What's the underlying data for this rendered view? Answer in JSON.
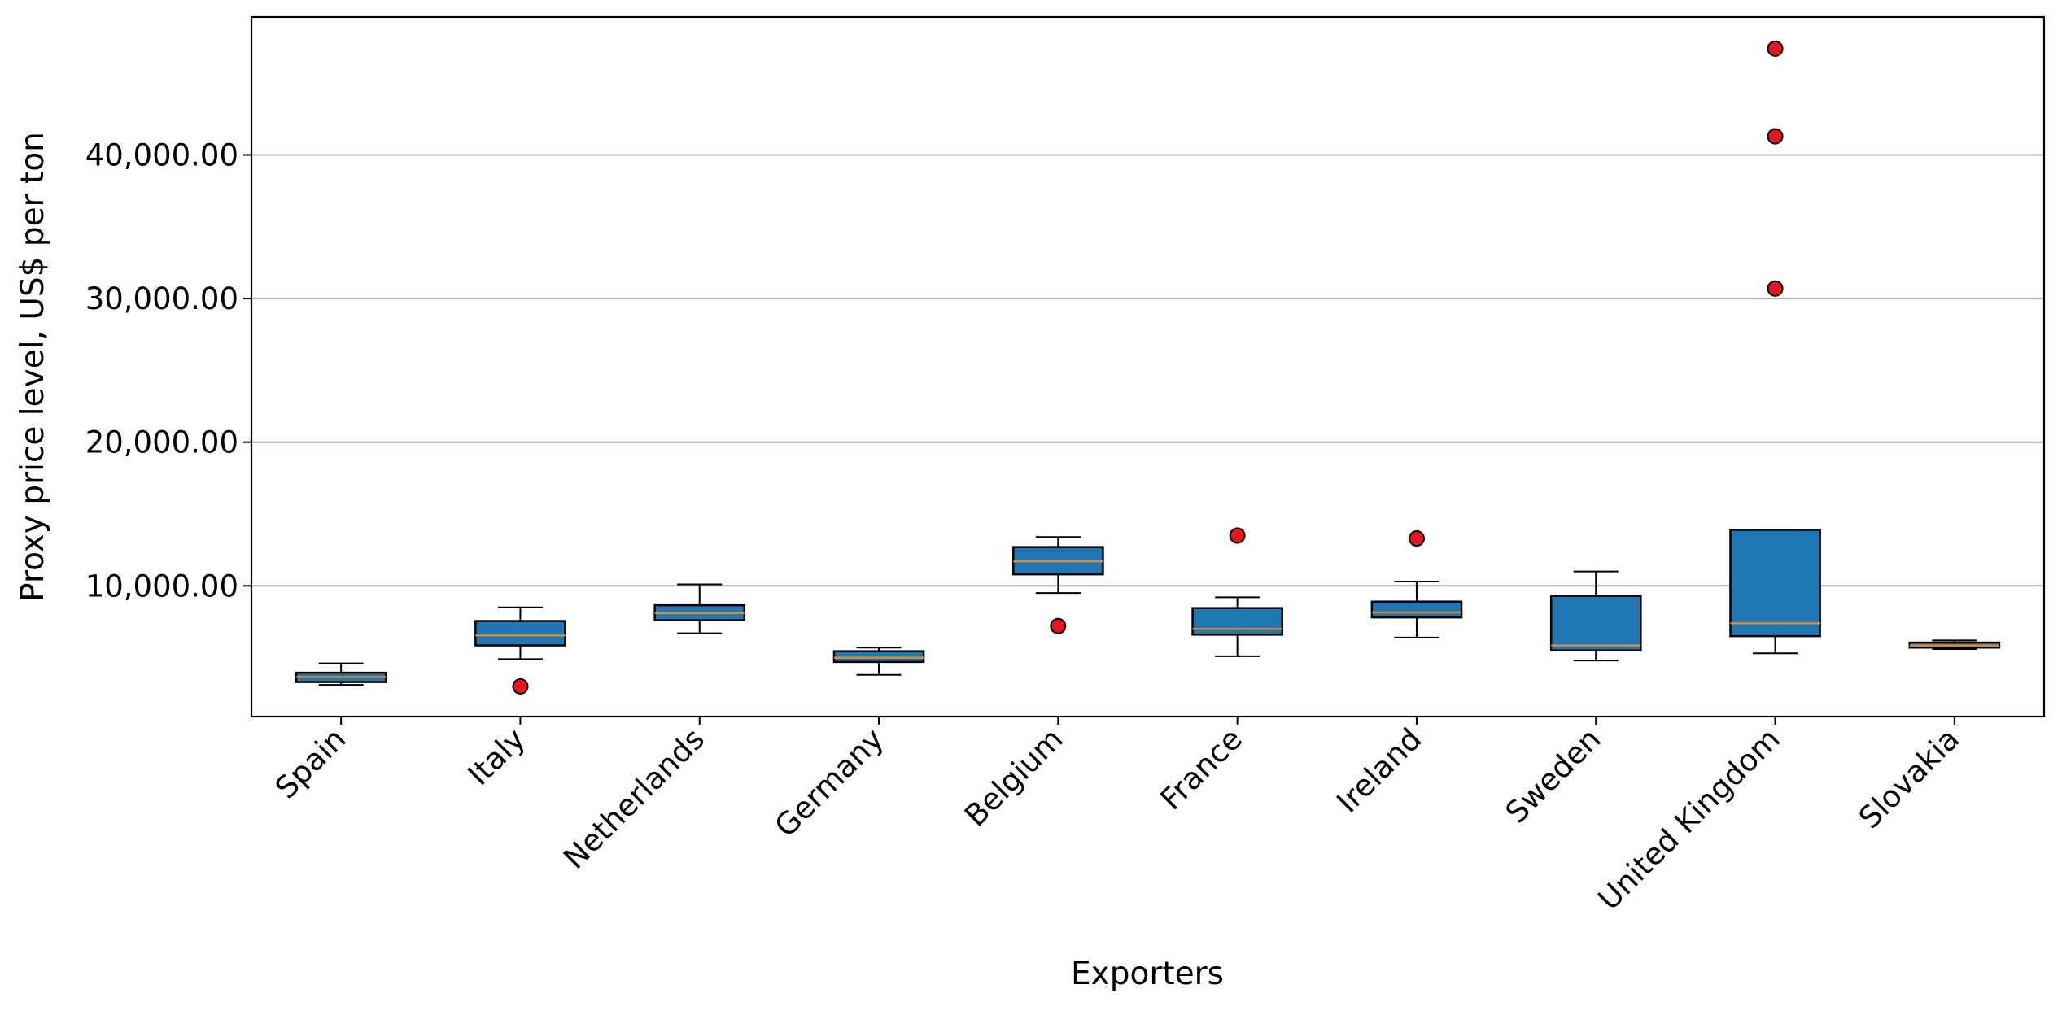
{
  "chart_data": {
    "type": "boxplot",
    "title": "",
    "xlabel": "Exporters",
    "ylabel": "Proxy price level, US$ per ton",
    "ylim": [
      900,
      49600
    ],
    "yticks": [
      10000,
      20000,
      30000,
      40000
    ],
    "ytick_labels": [
      "10,000.00",
      "20,000.00",
      "30,000.00",
      "40,000.00"
    ],
    "grid": "y",
    "legend": "none",
    "colors": {
      "box": "#1f77b4",
      "median": "#e08a2c",
      "outlier": "#e8141e",
      "grid": "#b0b0b0"
    },
    "categories": [
      "Spain",
      "Italy",
      "Netherlands",
      "Germany",
      "Belgium",
      "France",
      "Ireland",
      "Sweden",
      "United Kingdom",
      "Slovakia"
    ],
    "boxes": [
      {
        "category": "Spain",
        "whisker_low": 3100,
        "q1": 3300,
        "median": 3650,
        "q3": 3950,
        "whisker_high": 4600,
        "outliers": []
      },
      {
        "category": "Italy",
        "whisker_low": 4900,
        "q1": 5850,
        "median": 6550,
        "q3": 7550,
        "whisker_high": 8500,
        "outliers": [
          3000
        ]
      },
      {
        "category": "Netherlands",
        "whisker_low": 6700,
        "q1": 7600,
        "median": 8100,
        "q3": 8650,
        "whisker_high": 10100,
        "outliers": []
      },
      {
        "category": "Germany",
        "whisker_low": 3800,
        "q1": 4700,
        "median": 5000,
        "q3": 5450,
        "whisker_high": 5700,
        "outliers": []
      },
      {
        "category": "Belgium",
        "whisker_low": 9500,
        "q1": 10800,
        "median": 11700,
        "q3": 12700,
        "whisker_high": 13400,
        "outliers": [
          7200
        ]
      },
      {
        "category": "France",
        "whisker_low": 5100,
        "q1": 6600,
        "median": 7000,
        "q3": 8450,
        "whisker_high": 9200,
        "outliers": [
          13500
        ]
      },
      {
        "category": "Ireland",
        "whisker_low": 6400,
        "q1": 7800,
        "median": 8150,
        "q3": 8900,
        "whisker_high": 10300,
        "outliers": [
          13300
        ]
      },
      {
        "category": "Sweden",
        "whisker_low": 4800,
        "q1": 5500,
        "median": 5850,
        "q3": 9300,
        "whisker_high": 11000,
        "outliers": []
      },
      {
        "category": "United Kingdom",
        "whisker_low": 5300,
        "q1": 6500,
        "median": 7400,
        "q3": 13900,
        "whisker_high": 13900,
        "outliers": [
          30700,
          41300,
          47400
        ]
      },
      {
        "category": "Slovakia",
        "whisker_low": 5600,
        "q1": 5700,
        "median": 5850,
        "q3": 6050,
        "whisker_high": 6200,
        "outliers": []
      }
    ]
  }
}
